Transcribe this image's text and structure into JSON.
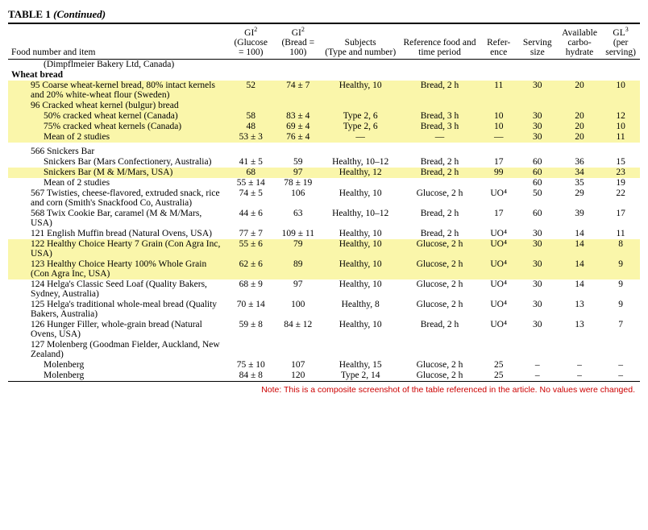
{
  "title_prefix": "TABLE 1 ",
  "title_suffix": "(Continued)",
  "headers": {
    "food": "Food number and item",
    "gi_glucose": "GI",
    "gi_glucose_sup": "2",
    "gi_glucose_sub": "(Glucose = 100)",
    "gi_bread": "GI",
    "gi_bread_sup": "2",
    "gi_bread_sub": "(Bread = 100)",
    "subjects": "Subjects",
    "subjects_sub": "(Type and number)",
    "reffood": "Reference food and time period",
    "ref": "Refer-ence",
    "serving": "Serving size",
    "carbo": "Available carbo-hydrate",
    "gl": "GL",
    "gl_sup": "3",
    "gl_sub": "(per serving)"
  },
  "rows": [
    {
      "kind": "plain",
      "indent": 2,
      "item": "(Dimpflmeier Bakery Ltd, Canada)",
      "cols": [
        "",
        "",
        "",
        "",
        "",
        "",
        "",
        ""
      ]
    },
    {
      "kind": "bold",
      "indent": 0,
      "item": "Wheat bread",
      "cols": [
        "",
        "",
        "",
        "",
        "",
        "",
        "",
        ""
      ]
    },
    {
      "kind": "hl",
      "indent": 1,
      "item": "95 Coarse wheat-kernel bread, 80% intact kernels and 20% white-wheat flour (Sweden)",
      "cols": [
        "52",
        "74 ± 7",
        "Healthy, 10",
        "Bread, 2 h",
        "11",
        "30",
        "20",
        "10"
      ]
    },
    {
      "kind": "hl",
      "indent": 1,
      "item": "96 Cracked wheat kernel (bulgur) bread",
      "cols": [
        "",
        "",
        "",
        "",
        "",
        "",
        "",
        ""
      ]
    },
    {
      "kind": "hl",
      "indent": 2,
      "item": "50% cracked wheat kernel (Canada)",
      "cols": [
        "58",
        "83 ± 4",
        "Type 2, 6",
        "Bread, 3 h",
        "10",
        "30",
        "20",
        "12"
      ]
    },
    {
      "kind": "hl",
      "indent": 2,
      "item": "75% cracked wheat kernels (Canada)",
      "cols": [
        "48",
        "69 ± 4",
        "Type 2, 6",
        "Bread, 3 h",
        "10",
        "30",
        "20",
        "10"
      ]
    },
    {
      "kind": "hl",
      "indent": 2,
      "item": "Mean of 2 studies",
      "cols": [
        "53 ± 3",
        "76 ± 4",
        "—",
        "—",
        "—",
        "30",
        "20",
        "11"
      ]
    },
    {
      "kind": "spacer"
    },
    {
      "kind": "plain",
      "indent": 1,
      "item": "566 Snickers Bar",
      "cols": [
        "",
        "",
        "",
        "",
        "",
        "",
        "",
        ""
      ]
    },
    {
      "kind": "plain",
      "indent": 2,
      "item": "Snickers Bar (Mars Confectionery, Australia)",
      "cols": [
        "41 ± 5",
        "59",
        "Healthy, 10–12",
        "Bread, 2 h",
        "17",
        "60",
        "36",
        "15"
      ]
    },
    {
      "kind": "hl",
      "indent": 2,
      "item": "Snickers Bar (M & M/Mars, USA)",
      "cols": [
        "68",
        "97",
        "Healthy, 12",
        "Bread, 2 h",
        "99",
        "60",
        "34",
        "23"
      ]
    },
    {
      "kind": "plain",
      "indent": 2,
      "item": "Mean of 2 studies",
      "cols": [
        "55 ± 14",
        "78 ± 19",
        "",
        "",
        "",
        "60",
        "35",
        "19"
      ]
    },
    {
      "kind": "plain",
      "indent": 1,
      "item": "567 Twisties, cheese-flavored, extruded snack, rice and corn (Smith's Snackfood Co, Australia)",
      "cols": [
        "74 ± 5",
        "106",
        "Healthy, 10",
        "Glucose, 2 h",
        "UO⁴",
        "50",
        "29",
        "22"
      ]
    },
    {
      "kind": "plain",
      "indent": 1,
      "item": "568 Twix Cookie Bar, caramel (M & M/Mars, USA)",
      "cols": [
        "44 ± 6",
        "63",
        "Healthy, 10–12",
        "Bread, 2 h",
        "17",
        "60",
        "39",
        "17"
      ]
    },
    {
      "kind": "plain",
      "indent": 1,
      "item": "121 English Muffin bread (Natural Ovens, USA)",
      "cols": [
        "77 ± 7",
        "109 ± 11",
        "Healthy, 10",
        "Bread, 2 h",
        "UO⁴",
        "30",
        "14",
        "11"
      ]
    },
    {
      "kind": "hl",
      "indent": 1,
      "item": "122 Healthy Choice Hearty 7 Grain (Con Agra Inc, USA)",
      "cols": [
        "55 ± 6",
        "79",
        "Healthy, 10",
        "Glucose, 2 h",
        "UO⁴",
        "30",
        "14",
        "8"
      ]
    },
    {
      "kind": "hl",
      "indent": 1,
      "item": "123 Healthy Choice Hearty 100% Whole Grain (Con Agra Inc, USA)",
      "cols": [
        "62 ± 6",
        "89",
        "Healthy, 10",
        "Glucose, 2 h",
        "UO⁴",
        "30",
        "14",
        "9"
      ]
    },
    {
      "kind": "plain",
      "indent": 1,
      "item": "124 Helga's Classic Seed Loaf (Quality Bakers, Sydney, Australia)",
      "cols": [
        "68 ± 9",
        "97",
        "Healthy, 10",
        "Glucose, 2 h",
        "UO⁴",
        "30",
        "14",
        "9"
      ]
    },
    {
      "kind": "plain",
      "indent": 1,
      "item": "125 Helga's traditional whole-meal bread (Quality Bakers, Australia)",
      "cols": [
        "70 ± 14",
        "100",
        "Healthy, 8",
        "Glucose, 2 h",
        "UO⁴",
        "30",
        "13",
        "9"
      ]
    },
    {
      "kind": "plain",
      "indent": 1,
      "item": "126 Hunger Filler, whole-grain bread (Natural Ovens, USA)",
      "cols": [
        "59 ± 8",
        "84 ± 12",
        "Healthy, 10",
        "Bread, 2 h",
        "UO⁴",
        "30",
        "13",
        "7"
      ]
    },
    {
      "kind": "plain",
      "indent": 1,
      "item": "127 Molenberg (Goodman Fielder, Auckland, New Zealand)",
      "cols": [
        "",
        "",
        "",
        "",
        "",
        "",
        "",
        ""
      ]
    },
    {
      "kind": "plain",
      "indent": 2,
      "item": "Molenberg",
      "cols": [
        "75 ± 10",
        "107",
        "Healthy, 15",
        "Glucose, 2 h",
        "25",
        "–",
        "–",
        "–"
      ]
    },
    {
      "kind": "plain",
      "indent": 2,
      "item": "Molenberg",
      "cols": [
        "84 ± 8",
        "120",
        "Type 2, 14",
        "Glucose, 2 h",
        "25",
        "–",
        "–",
        "–"
      ]
    }
  ],
  "footnote": "Note: This is a composite screenshot of the table referenced in the article. No values were changed.",
  "colwidths": [
    "260px",
    "56px",
    "56px",
    "92px",
    "96px",
    "44px",
    "48px",
    "50px",
    "44px"
  ]
}
